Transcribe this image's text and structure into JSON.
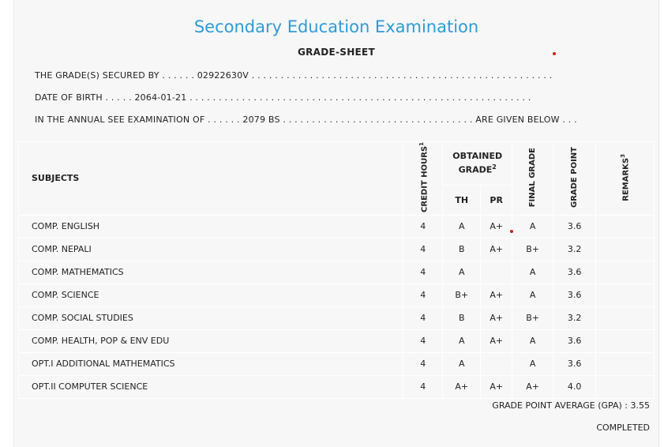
{
  "header": {
    "title": "Secondary Education Examination",
    "subtitle": "GRADE-SHEET"
  },
  "info": {
    "secured_by_line": "THE GRADE(S) SECURED BY . . . . . . 02922630V . . . . . . . . . . . . . . . . . . . . . . . . . . . . . . . . . . . . . . . . . . . . . . . . . . . .",
    "dob_line": "DATE OF BIRTH . . . . . 2064-01-21 . . . . . . . . . . . . . . . . . . . . . . . . . . . . . . . . . . . . . . . . . . . . . . . . . . . . . . . . . . .",
    "exam_line": "IN THE ANNUAL SEE EXAMINATION OF . . . . . . 2079 BS . . . . . . . . . . . . . . . . . . . . . . . . . . . . . . . . . ARE GIVEN BELOW . . ."
  },
  "table": {
    "headers": {
      "subjects": "SUBJECTS",
      "credit": "CREDIT HOURS",
      "credit_sup": "1",
      "obtained": "OBTAINED GRADE",
      "obtained_sup": "2",
      "th": "TH",
      "pr": "PR",
      "final": "FINAL GRADE",
      "point": "GRADE POINT",
      "remarks": "REMARKS",
      "remarks_sup": "3"
    },
    "rows": [
      {
        "subject": "COMP. ENGLISH",
        "credit": "4",
        "th": "A",
        "pr": "A+",
        "final": "A",
        "point": "3.6",
        "remarks": ""
      },
      {
        "subject": "COMP. NEPALI",
        "credit": "4",
        "th": "B",
        "pr": "A+",
        "final": "B+",
        "point": "3.2",
        "remarks": ""
      },
      {
        "subject": "COMP. MATHEMATICS",
        "credit": "4",
        "th": "A",
        "pr": "",
        "final": "A",
        "point": "3.6",
        "remarks": ""
      },
      {
        "subject": "COMP. SCIENCE",
        "credit": "4",
        "th": "B+",
        "pr": "A+",
        "final": "A",
        "point": "3.6",
        "remarks": ""
      },
      {
        "subject": "COMP. SOCIAL STUDIES",
        "credit": "4",
        "th": "B",
        "pr": "A+",
        "final": "B+",
        "point": "3.2",
        "remarks": ""
      },
      {
        "subject": "COMP. HEALTH, POP & ENV EDU",
        "credit": "4",
        "th": "A",
        "pr": "A+",
        "final": "A",
        "point": "3.6",
        "remarks": ""
      },
      {
        "subject": "OPT.I ADDITIONAL MATHEMATICS",
        "credit": "4",
        "th": "A",
        "pr": "",
        "final": "A",
        "point": "3.6",
        "remarks": ""
      },
      {
        "subject": "OPT.II COMPUTER SCIENCE",
        "credit": "4",
        "th": "A+",
        "pr": "A+",
        "final": "A+",
        "point": "4.0",
        "remarks": ""
      }
    ]
  },
  "footer": {
    "gpa": "GRADE POINT AVERAGE (GPA) : 3.55",
    "status": "COMPLETED"
  },
  "colors": {
    "title": "#2e9bd6",
    "background": "#f7f7f7",
    "marker_dot": "#d0201f"
  }
}
